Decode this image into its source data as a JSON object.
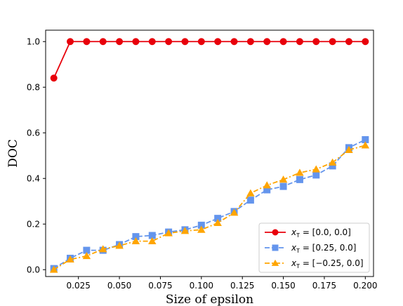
{
  "chart_data": {
    "type": "line",
    "title": "",
    "xlabel": "Size of epsilon",
    "ylabel": "DOC",
    "xlim": [
      0.005,
      0.205
    ],
    "ylim": [
      -0.03,
      1.05
    ],
    "x_ticks": [
      0.025,
      0.05,
      0.075,
      0.1,
      0.125,
      0.15,
      0.175,
      0.2
    ],
    "x_tick_labels": [
      "0.025",
      "0.050",
      "0.075",
      "0.100",
      "0.125",
      "0.150",
      "0.175",
      "0.200"
    ],
    "y_ticks": [
      0.0,
      0.2,
      0.4,
      0.6,
      0.8,
      1.0
    ],
    "y_tick_labels": [
      "0.0",
      "0.2",
      "0.4",
      "0.6",
      "0.8",
      "1.0"
    ],
    "grid": false,
    "legend_position": "lower-right",
    "x": [
      0.01,
      0.02,
      0.03,
      0.04,
      0.05,
      0.06,
      0.07,
      0.08,
      0.09,
      0.1,
      0.11,
      0.12,
      0.13,
      0.14,
      0.15,
      0.16,
      0.17,
      0.18,
      0.19,
      0.2
    ],
    "series": [
      {
        "legend_main": "x",
        "legend_sub": "T",
        "legend_rest": " = [0.0, 0.0]",
        "color": "#e8000b",
        "marker": "circle",
        "line_style": "solid",
        "values": [
          0.84,
          1.0,
          1.0,
          1.0,
          1.0,
          1.0,
          1.0,
          1.0,
          1.0,
          1.0,
          1.0,
          1.0,
          1.0,
          1.0,
          1.0,
          1.0,
          1.0,
          1.0,
          1.0,
          1.0
        ]
      },
      {
        "legend_main": "x",
        "legend_sub": "T",
        "legend_rest": " = [0.25, 0.0]",
        "color": "#6495ed",
        "marker": "square",
        "line_style": "dashed",
        "values": [
          0.005,
          0.05,
          0.085,
          0.085,
          0.11,
          0.145,
          0.15,
          0.165,
          0.175,
          0.195,
          0.225,
          0.255,
          0.305,
          0.35,
          0.365,
          0.395,
          0.415,
          0.455,
          0.535,
          0.57
        ]
      },
      {
        "legend_main": "x",
        "legend_sub": "T",
        "legend_rest": " = [−0.25, 0.0]",
        "color": "#ffa500",
        "marker": "triangle",
        "line_style": "dashdot",
        "values": [
          0.0,
          0.045,
          0.06,
          0.09,
          0.105,
          0.125,
          0.125,
          0.16,
          0.17,
          0.175,
          0.205,
          0.25,
          0.335,
          0.37,
          0.395,
          0.425,
          0.44,
          0.47,
          0.525,
          0.545
        ]
      }
    ]
  }
}
